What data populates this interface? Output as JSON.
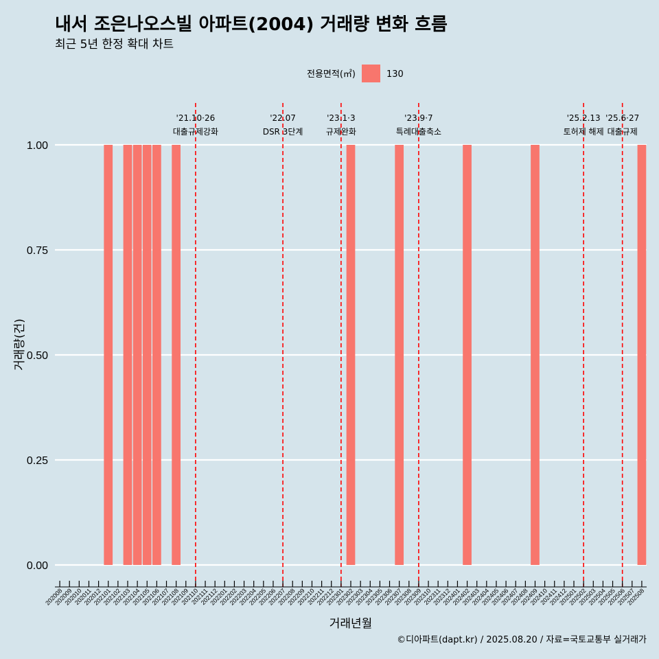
{
  "title": "내서 조은나오스빌 아파트(2004) 거래량 변화 흐름",
  "subtitle": "최근 5년 한정 확대 차트",
  "caption": "©디아파트(dapt.kr) / 2025.08.20 / 자료=국토교통부 실거래가",
  "colors": {
    "background": "#d5e4eb",
    "bar": "#f8766d",
    "event_line": "#ff0000",
    "grid": "#ffffff"
  },
  "chart_data": {
    "type": "bar",
    "xlabel": "거래년월",
    "ylabel": "거래량(건)",
    "ylim": [
      0,
      1
    ],
    "yticks": [
      "0.00",
      "0.25",
      "0.50",
      "0.75",
      "1.00"
    ],
    "legend": {
      "title": "전용면적(㎡)",
      "position": "top",
      "entries": [
        "130"
      ]
    },
    "categories": [
      "202008",
      "202009",
      "202010",
      "202011",
      "202012",
      "202101",
      "202102",
      "202103",
      "202104",
      "202105",
      "202106",
      "202107",
      "202108",
      "202109",
      "202110",
      "202111",
      "202112",
      "202201",
      "202202",
      "202203",
      "202204",
      "202205",
      "202206",
      "202207",
      "202208",
      "202209",
      "202210",
      "202211",
      "202212",
      "202301",
      "202302",
      "202303",
      "202304",
      "202305",
      "202306",
      "202307",
      "202308",
      "202309",
      "202310",
      "202311",
      "202312",
      "202401",
      "202402",
      "202403",
      "202404",
      "202405",
      "202406",
      "202407",
      "202408",
      "202409",
      "202410",
      "202411",
      "202412",
      "202501",
      "202502",
      "202503",
      "202504",
      "202505",
      "202506",
      "202507",
      "202508"
    ],
    "series": [
      {
        "name": "130",
        "values": [
          0,
          0,
          0,
          0,
          0,
          1,
          0,
          1,
          1,
          1,
          1,
          0,
          1,
          0,
          0,
          0,
          0,
          0,
          0,
          0,
          0,
          0,
          0,
          0,
          0,
          0,
          0,
          0,
          0,
          0,
          1,
          0,
          0,
          0,
          0,
          1,
          0,
          0,
          0,
          0,
          0,
          0,
          1,
          0,
          0,
          0,
          0,
          0,
          0,
          1,
          0,
          0,
          0,
          0,
          0,
          0,
          0,
          0,
          0,
          0,
          1
        ]
      }
    ],
    "annotations": [
      {
        "x": "202110",
        "date": "'21.10·26",
        "label": "대출규제강화"
      },
      {
        "x": "202207",
        "date": "'22.07",
        "label": "DSR 3단계"
      },
      {
        "x": "202301",
        "date": "'23.1·3",
        "label": "규제완화"
      },
      {
        "x": "202309",
        "date": "'23.9·7",
        "label": "특례대출축소"
      },
      {
        "x": "202502",
        "date": "'25.2.13",
        "label": "토허제 해제"
      },
      {
        "x": "202506",
        "date": "'25.6·27",
        "label": "대출규제"
      }
    ]
  }
}
